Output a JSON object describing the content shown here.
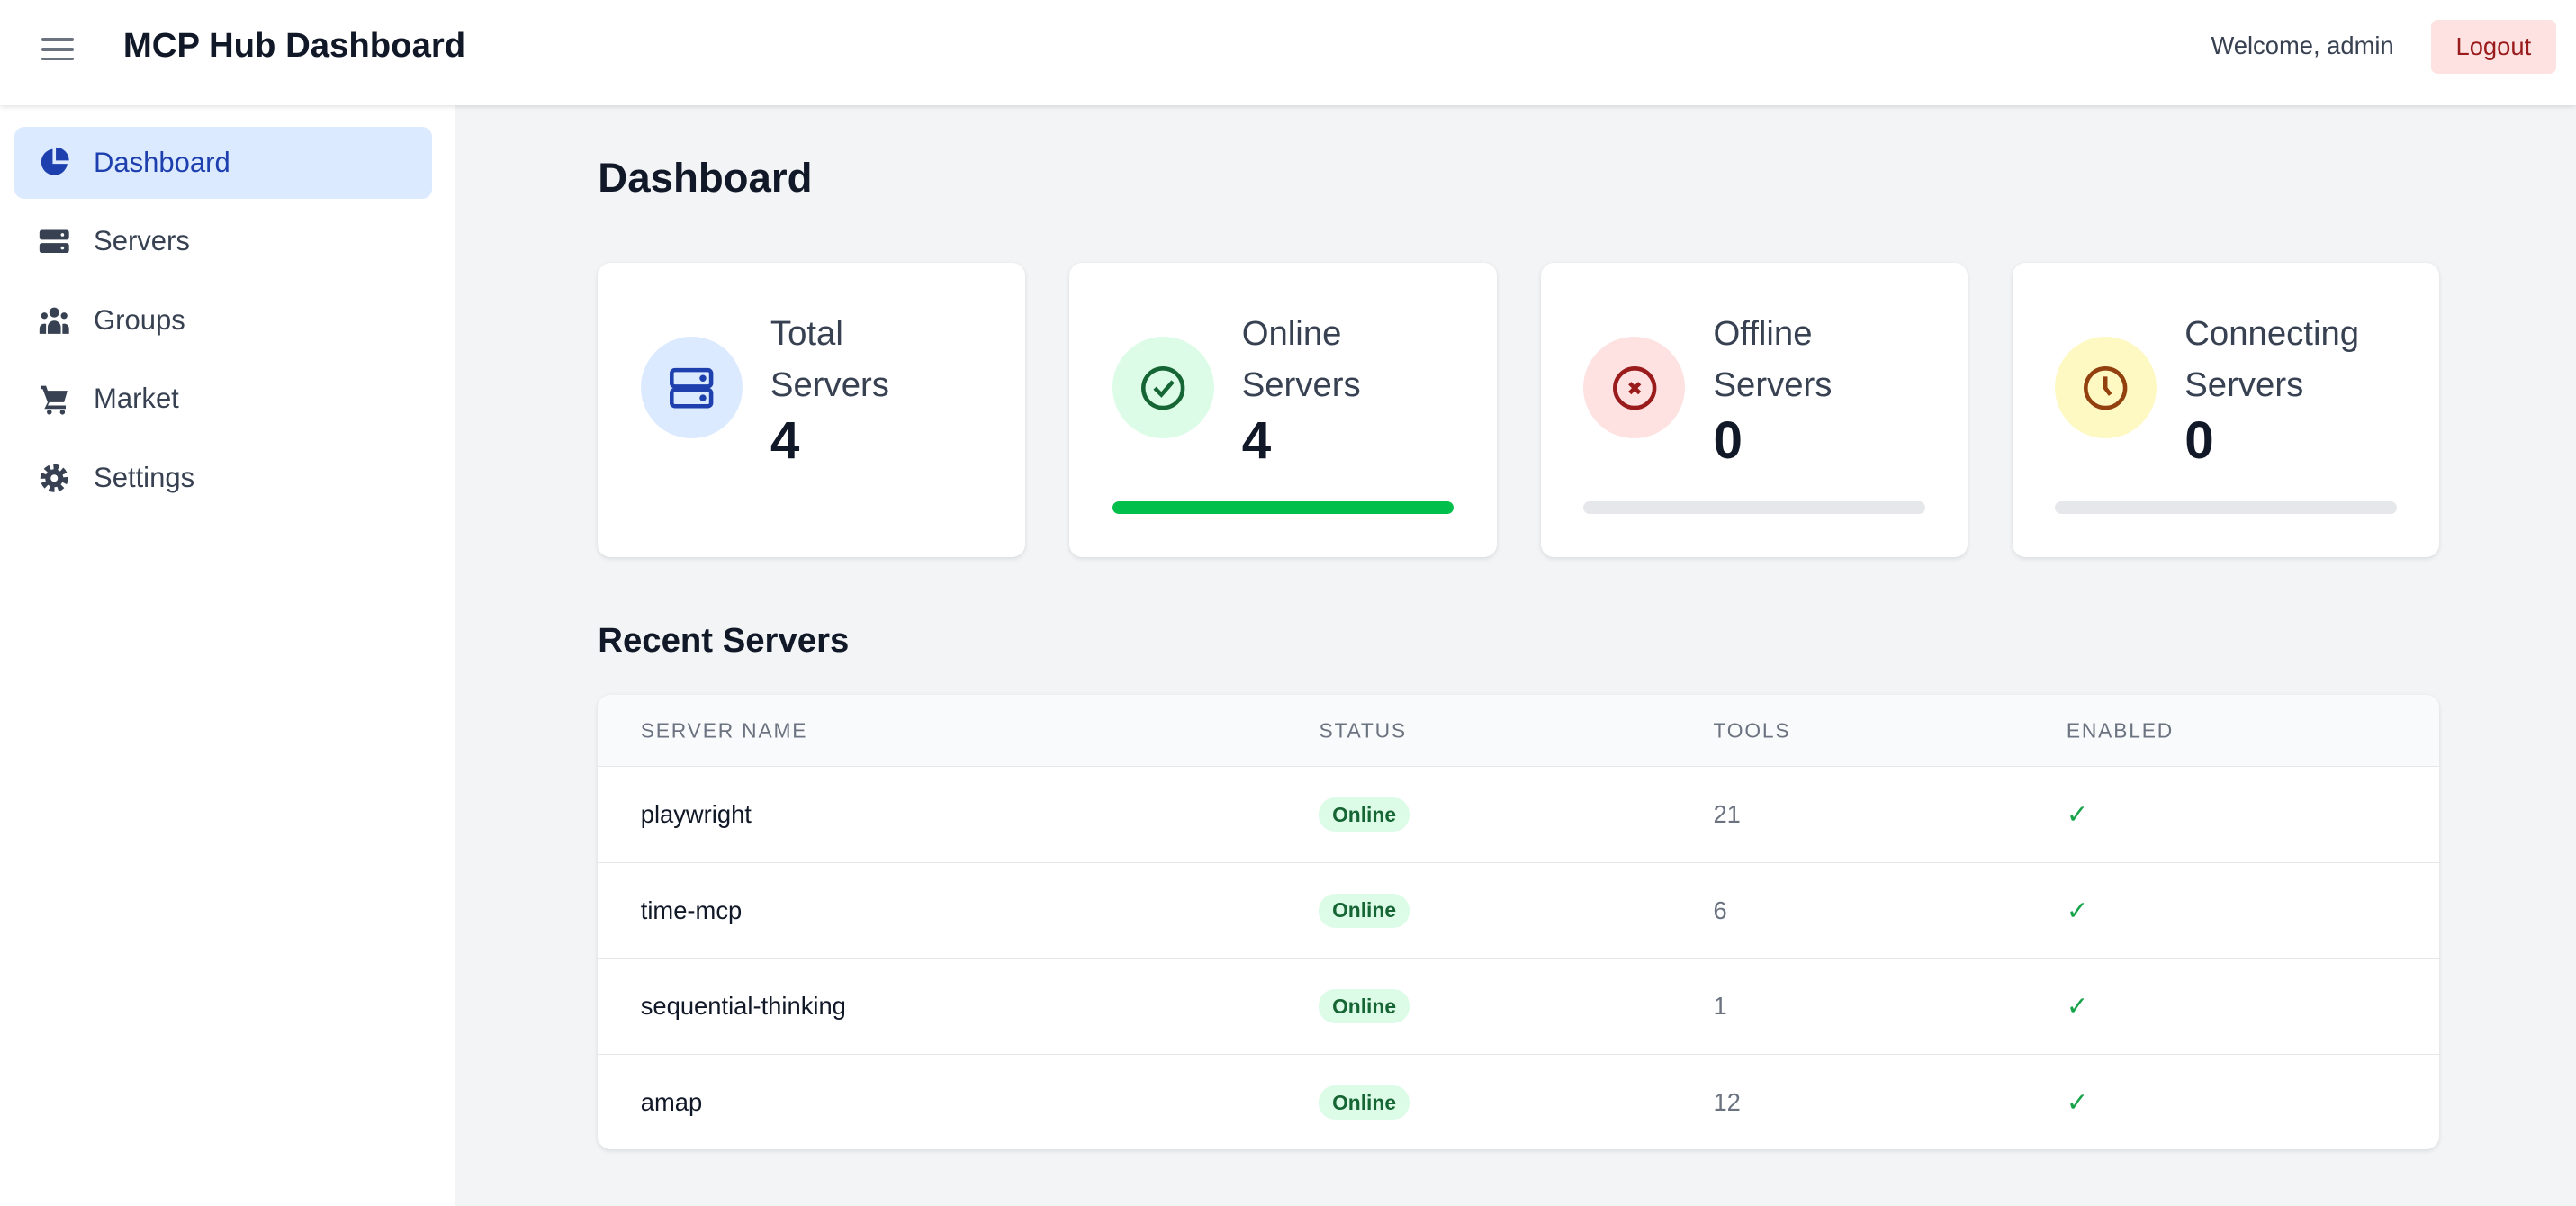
{
  "header": {
    "title": "MCP Hub Dashboard",
    "welcome": "Welcome, admin",
    "logout": "Logout"
  },
  "sidebar": {
    "items": [
      {
        "label": "Dashboard",
        "icon": "pie-chart-icon",
        "active": true
      },
      {
        "label": "Servers",
        "icon": "server-icon"
      },
      {
        "label": "Groups",
        "icon": "users-icon"
      },
      {
        "label": "Market",
        "icon": "cart-icon"
      },
      {
        "label": "Settings",
        "icon": "gear-icon"
      }
    ]
  },
  "main": {
    "title": "Dashboard",
    "cards": [
      {
        "line1": "Total",
        "line2": "Servers",
        "value": "4",
        "icon": "server-icon",
        "color": "#1e40af",
        "bg": "#dbeafe"
      },
      {
        "line1": "Online",
        "line2": "Servers",
        "value": "4",
        "icon": "check-circle-icon",
        "color": "#166534",
        "bg": "#dcfce7",
        "progress": 1.0
      },
      {
        "line1": "Offline",
        "line2": "Servers",
        "value": "0",
        "icon": "x-circle-icon",
        "color": "#991b1b",
        "bg": "#fee2e2",
        "progress": 0
      },
      {
        "line1": "Connecting",
        "line2": "Servers",
        "value": "0",
        "icon": "clock-icon",
        "color": "#92400e",
        "bg": "#fef9c3",
        "progress": 0
      }
    ],
    "recent_title": "Recent Servers",
    "table": {
      "headers": [
        "SERVER NAME",
        "STATUS",
        "TOOLS",
        "ENABLED"
      ],
      "rows": [
        {
          "name": "playwright",
          "status": "Online",
          "tools": "21",
          "enabled": "✓"
        },
        {
          "name": "time-mcp",
          "status": "Online",
          "tools": "6",
          "enabled": "✓"
        },
        {
          "name": "sequential-thinking",
          "status": "Online",
          "tools": "1",
          "enabled": "✓"
        },
        {
          "name": "amap",
          "status": "Online",
          "tools": "12",
          "enabled": "✓"
        }
      ]
    }
  }
}
